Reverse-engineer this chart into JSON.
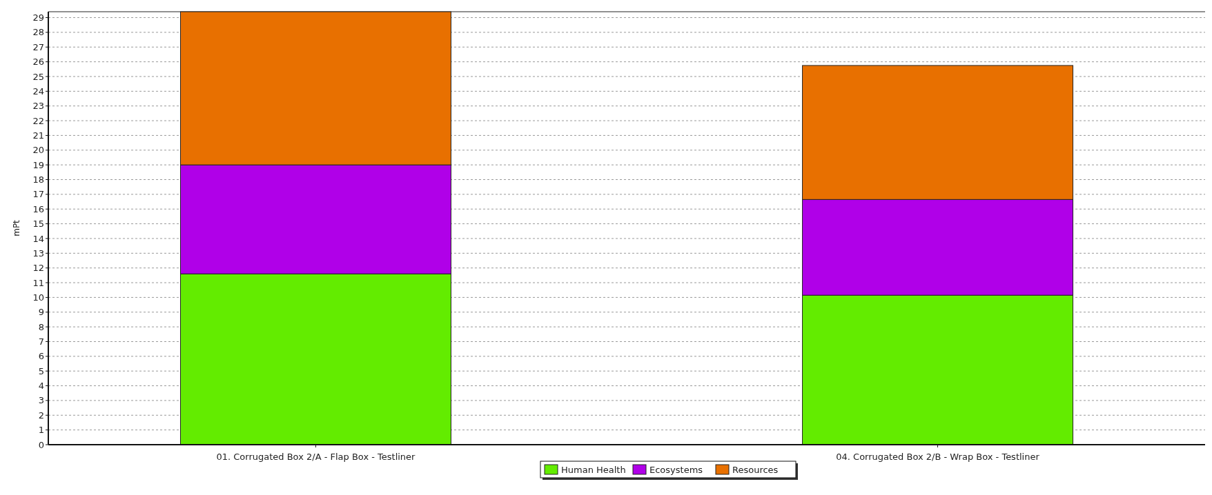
{
  "chart_data": {
    "type": "bar",
    "stacked": true,
    "ylabel": "mPt",
    "categories": [
      "01. Corrugated Box 2/A - Flap Box - Testliner",
      "04. Corrugated Box 2/B - Wrap Box - Testliner"
    ],
    "series": [
      {
        "name": "Human Health",
        "color": "#63ec00",
        "values": [
          11.6,
          10.15
        ]
      },
      {
        "name": "Ecosystems",
        "color": "#b000e8",
        "values": [
          7.4,
          6.5
        ]
      },
      {
        "name": "Resources",
        "color": "#e87000",
        "values": [
          10.4,
          9.1
        ]
      }
    ],
    "ylim": [
      0,
      29.4
    ],
    "yticks": [
      0,
      1,
      2,
      3,
      4,
      5,
      6,
      7,
      8,
      9,
      10,
      11,
      12,
      13,
      14,
      15,
      16,
      17,
      18,
      19,
      20,
      21,
      22,
      23,
      24,
      25,
      26,
      27,
      28,
      29
    ],
    "grid": "y",
    "legend": "bottom"
  }
}
